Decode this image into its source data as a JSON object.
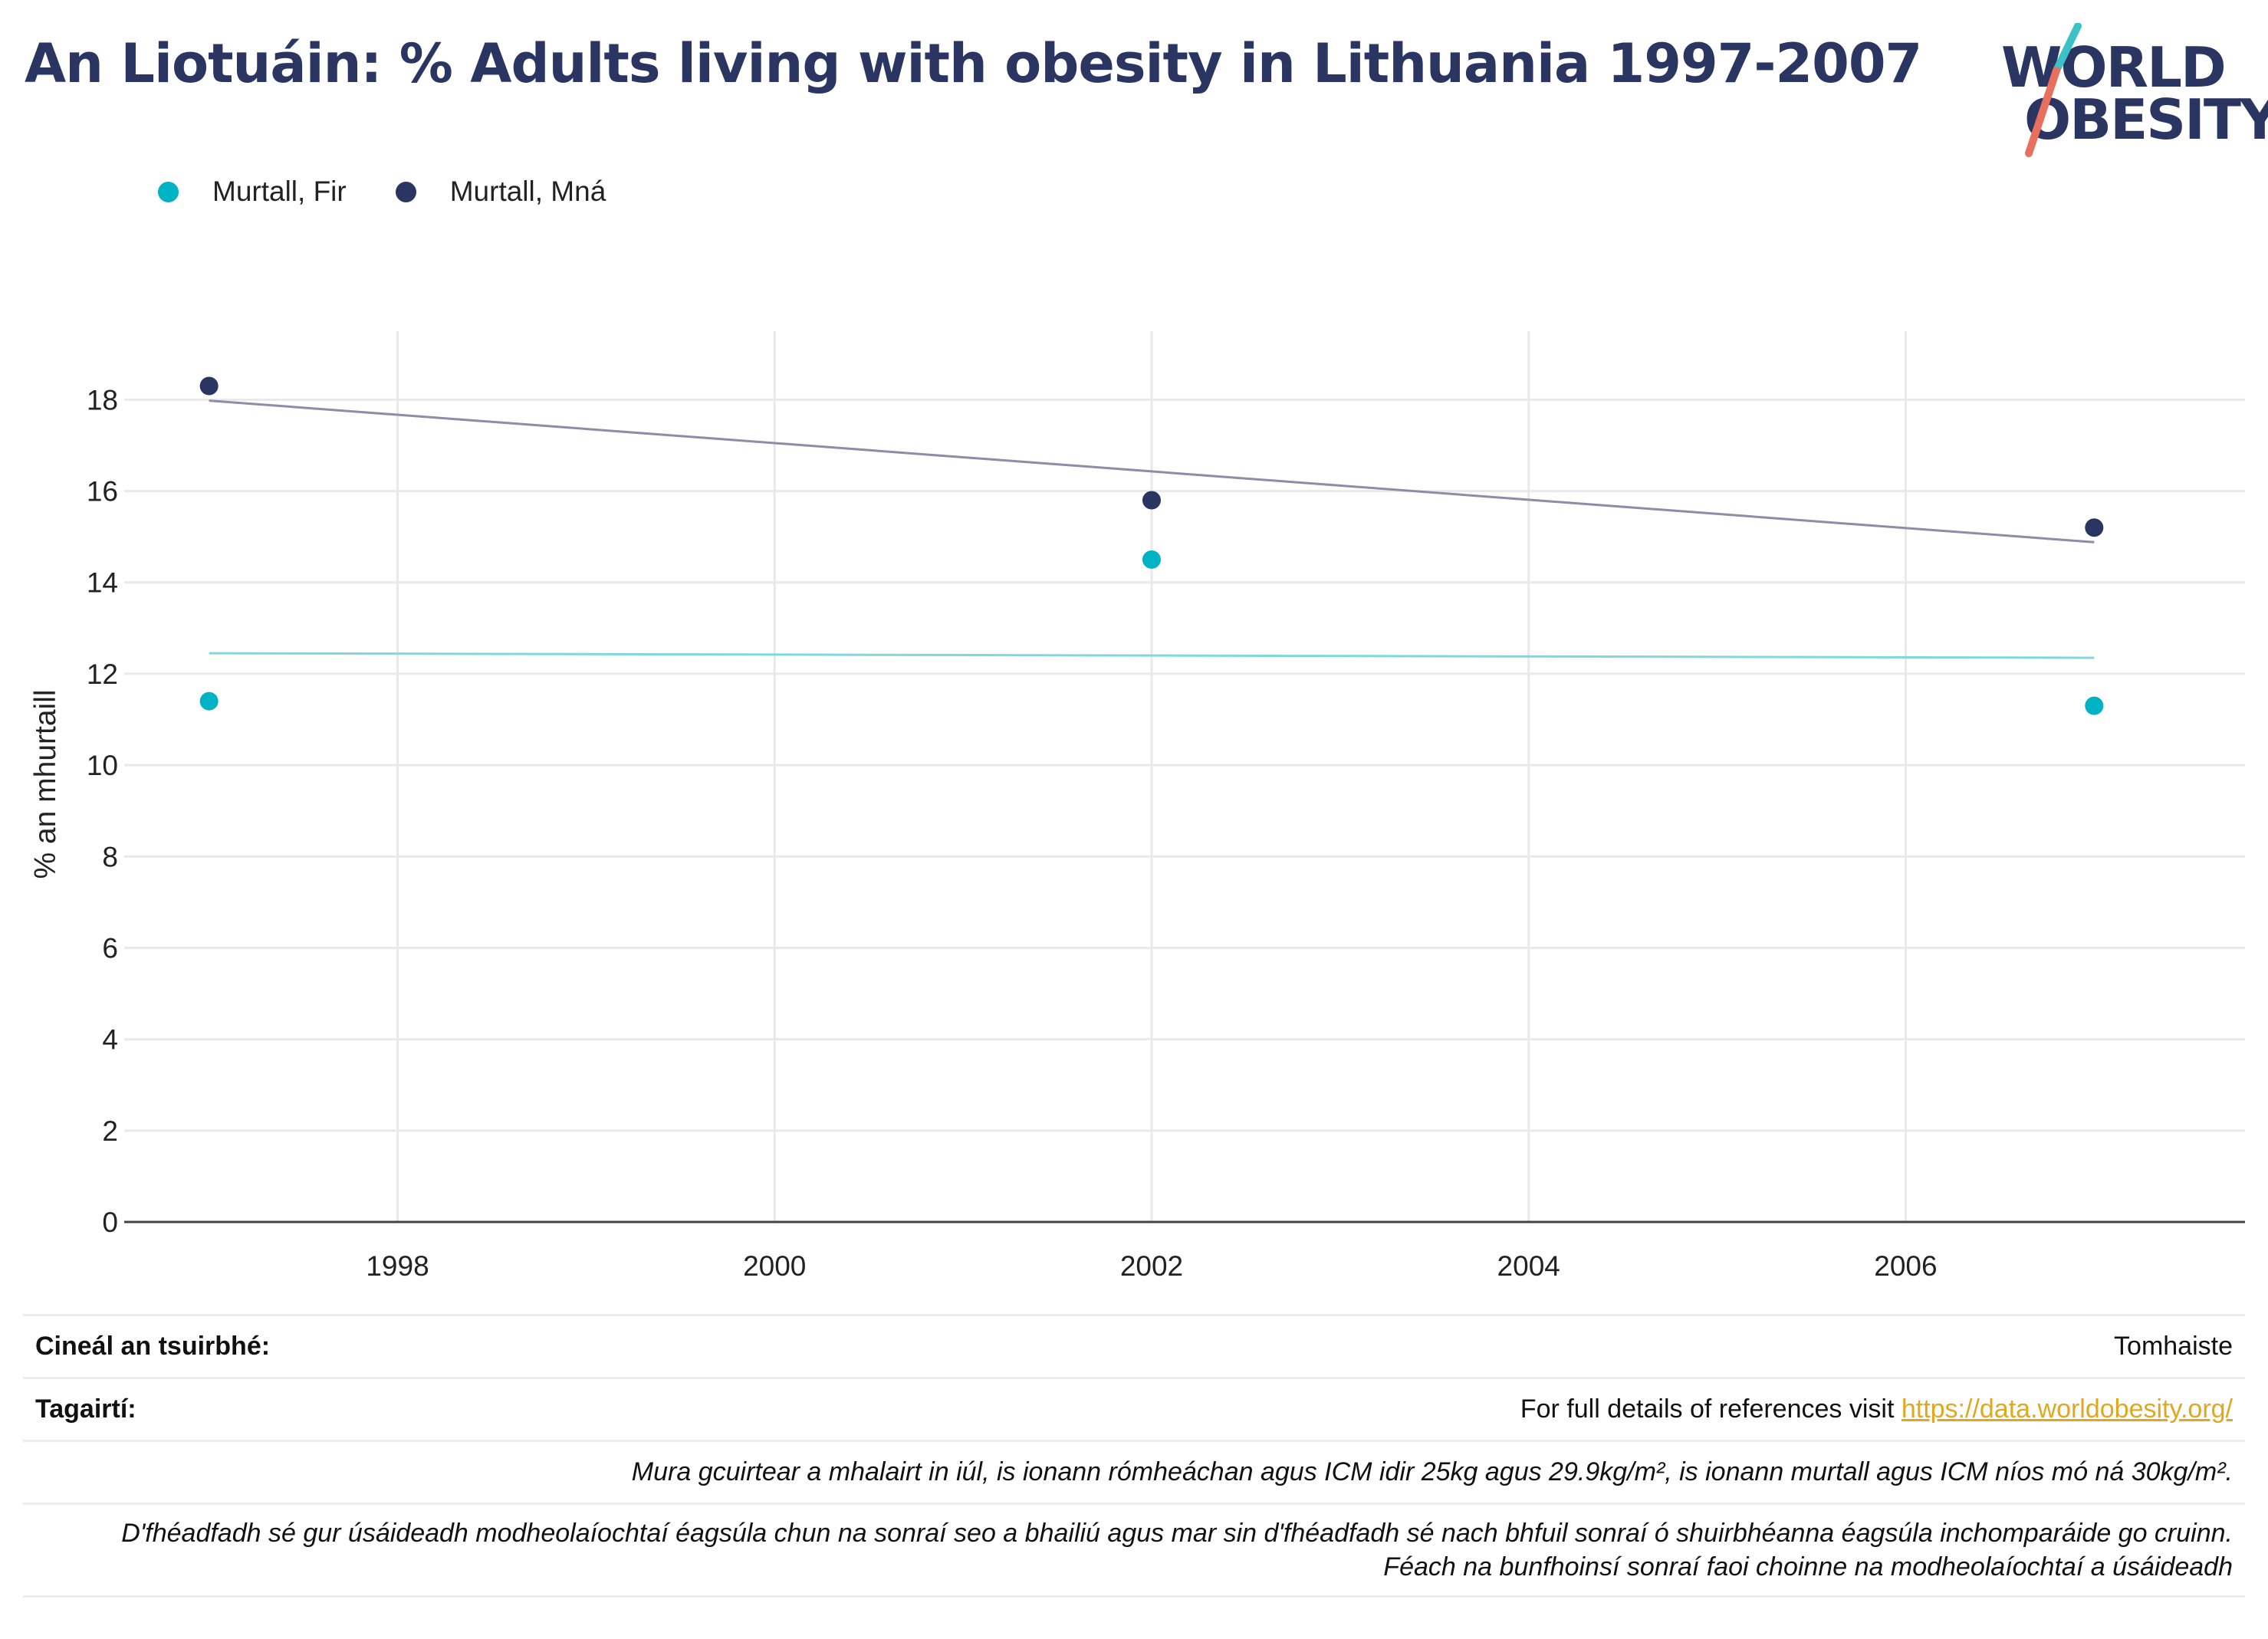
{
  "title": "An Liotuáin: % Adults living with obesity in Lithuania 1997-2007",
  "logo": {
    "line1": "WORLD",
    "line2": "OBESITY"
  },
  "colors": {
    "men": "#00b3c4",
    "women": "#2a3561",
    "men_trend": "#7fd8dc",
    "women_trend": "#8e8ca6"
  },
  "chart_data": {
    "type": "scatter",
    "title": "An Liotuáin: % Adults living with obesity in Lithuania 1997-2007",
    "xlabel": "",
    "ylabel": "% an mhurtaill",
    "xlim": [
      1996.55,
      2007.8
    ],
    "ylim": [
      0,
      19.5
    ],
    "x_ticks": [
      1998,
      2000,
      2002,
      2004,
      2006
    ],
    "y_ticks": [
      0,
      2,
      4,
      6,
      8,
      10,
      12,
      14,
      16,
      18
    ],
    "grid": true,
    "legend_position": "top-left",
    "series": [
      {
        "name": "Murtall, Fir",
        "color": "#00b3c4",
        "points": [
          {
            "x": 1997,
            "y": 11.4
          },
          {
            "x": 2002,
            "y": 14.5
          },
          {
            "x": 2007,
            "y": 11.3
          }
        ],
        "trend": [
          {
            "x": 1997,
            "y": 12.45
          },
          {
            "x": 2007,
            "y": 12.35
          }
        ]
      },
      {
        "name": "Murtall, Mná",
        "color": "#2a3561",
        "points": [
          {
            "x": 1997,
            "y": 18.3
          },
          {
            "x": 2002,
            "y": 15.8
          },
          {
            "x": 2007,
            "y": 15.2
          }
        ],
        "trend": [
          {
            "x": 1997,
            "y": 17.98
          },
          {
            "x": 2007,
            "y": 14.88
          }
        ]
      }
    ]
  },
  "table": {
    "survey_label": "Cineál an tsuirbhé:",
    "survey_value": "Tomhaiste",
    "refs_label": "Tagairtí:",
    "refs_text": "For full details of references visit ",
    "refs_link": "https://data.worldobesity.org/",
    "note1": "Mura gcuirtear a mhalairt in iúl, is ionann rómheáchan agus ICM idir 25kg agus 29.9kg/m², is ionann murtall agus ICM níos mó ná 30kg/m².",
    "note2_line1": "D'fhéadfadh sé gur úsáideadh modheolaíochtaí éagsúla chun na sonraí seo a bhailiú agus mar sin d'fhéadfadh sé nach bhfuil sonraí ó shuirbhéanna éagsúla inchomparáide go cruinn.",
    "note2_line2": "Féach na bunfhoinsí sonraí faoi choinne na modheolaíochtaí a úsáideadh"
  }
}
